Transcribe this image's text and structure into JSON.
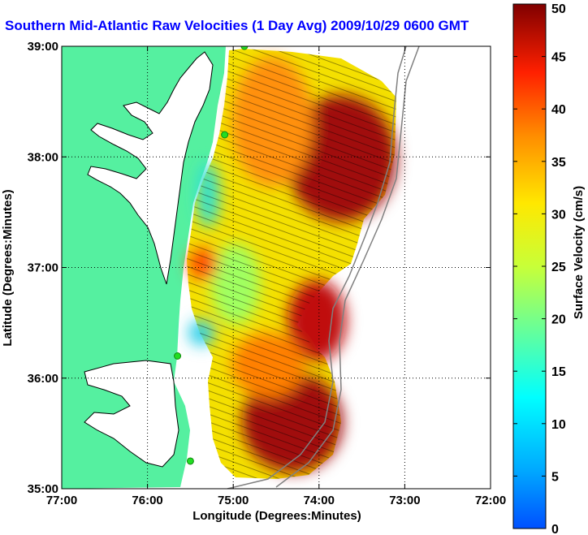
{
  "title": "Southern Mid-Atlantic Raw Velocities (1 Day Avg) 2009/10/29 0600 GMT",
  "chart_data": {
    "type": "heatmap",
    "title": "Southern Mid-Atlantic Raw Velocities (1 Day Avg) 2009/10/29 0600 GMT",
    "xlabel": "Longitude (Degrees:Minutes)",
    "ylabel": "Latitude (Degrees:Minutes)",
    "xlim": [
      -77,
      -72
    ],
    "ylim": [
      35,
      39
    ],
    "x_ticks": [
      -77,
      -76,
      -75,
      -74,
      -73,
      -72
    ],
    "x_tick_labels": [
      "77:00",
      "76:00",
      "75:00",
      "74:00",
      "73:00",
      "72:00"
    ],
    "y_ticks": [
      35,
      36,
      37,
      38,
      39
    ],
    "y_tick_labels": [
      "35:00",
      "36:00",
      "37:00",
      "38:00",
      "39:00"
    ],
    "grid": true,
    "colorbar": {
      "label": "Surface Velocity (cm/s)",
      "range": [
        0,
        50
      ],
      "ticks": [
        0,
        5,
        10,
        15,
        20,
        25,
        30,
        35,
        40,
        45,
        50
      ],
      "colormap": "jet"
    },
    "field_regions": [
      {
        "lon": [
          -74.7,
          -73.1
        ],
        "lat": [
          37.5,
          38.6
        ],
        "speed": 46
      },
      {
        "lon": [
          -74.9,
          -73.9
        ],
        "lat": [
          35.1,
          36.0
        ],
        "speed": 47
      },
      {
        "lon": [
          -74.6,
          -73.8
        ],
        "lat": [
          36.0,
          36.7
        ],
        "speed": 44
      },
      {
        "lon": [
          -75.0,
          -74.3
        ],
        "lat": [
          37.8,
          38.9
        ],
        "speed": 33
      },
      {
        "lon": [
          -75.5,
          -74.2
        ],
        "lat": [
          36.8,
          37.6
        ],
        "speed": 27
      },
      {
        "lon": [
          -75.4,
          -74.6
        ],
        "lat": [
          36.2,
          36.9
        ],
        "speed": 22
      },
      {
        "lon": [
          -75.7,
          -75.4
        ],
        "lat": [
          36.2,
          36.4
        ],
        "speed": 14
      },
      {
        "lon": [
          -75.6,
          -75.2
        ],
        "lat": [
          37.4,
          38.0
        ],
        "speed": 16
      }
    ],
    "stations": [
      {
        "lon": -74.87,
        "lat": 39.0
      },
      {
        "lon": -75.1,
        "lat": 38.2
      },
      {
        "lon": -75.65,
        "lat": 36.2
      },
      {
        "lon": -75.5,
        "lat": 35.25
      }
    ],
    "colors": {
      "land": "#55f0a0",
      "water_outline": "#000000",
      "station": "#22dd22",
      "title": "#0000ff"
    }
  }
}
